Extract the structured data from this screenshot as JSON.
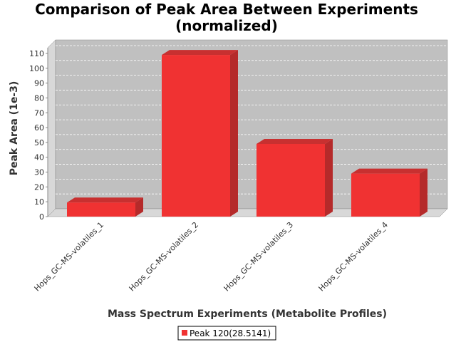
{
  "chart_data": {
    "type": "bar",
    "title_line1": "Comparison of Peak Area Between Experiments",
    "title_line2": "(normalized)",
    "xlabel": "Mass Spectrum Experiments (Metabolite Profiles)",
    "ylabel": "Peak Area (1e-3)",
    "categories": [
      "Hops_GC-MS-volatiles_1",
      "Hops_GC-MS-volatiles_2",
      "Hops_GC-MS-volatiles_3",
      "Hops_GC-MS-volatiles_4"
    ],
    "series": [
      {
        "name": "Peak 120(28.5141)",
        "values": [
          9.5,
          109,
          49,
          29
        ]
      }
    ],
    "ylim": [
      0,
      110
    ],
    "yticks": [
      "0",
      "10",
      "20",
      "30",
      "40",
      "50",
      "60",
      "70",
      "80",
      "90",
      "100",
      "110"
    ],
    "grid": true,
    "legend_position": "bottom",
    "colors": {
      "bar_front": "#f03232",
      "bar_top": "#c83030",
      "bar_side": "#b52a2a",
      "plot_bg": "#c0c0c0",
      "plot_wall": "#d8d8d8",
      "plot_floor": "#d8d8d8",
      "grid": "#ffffff"
    }
  }
}
